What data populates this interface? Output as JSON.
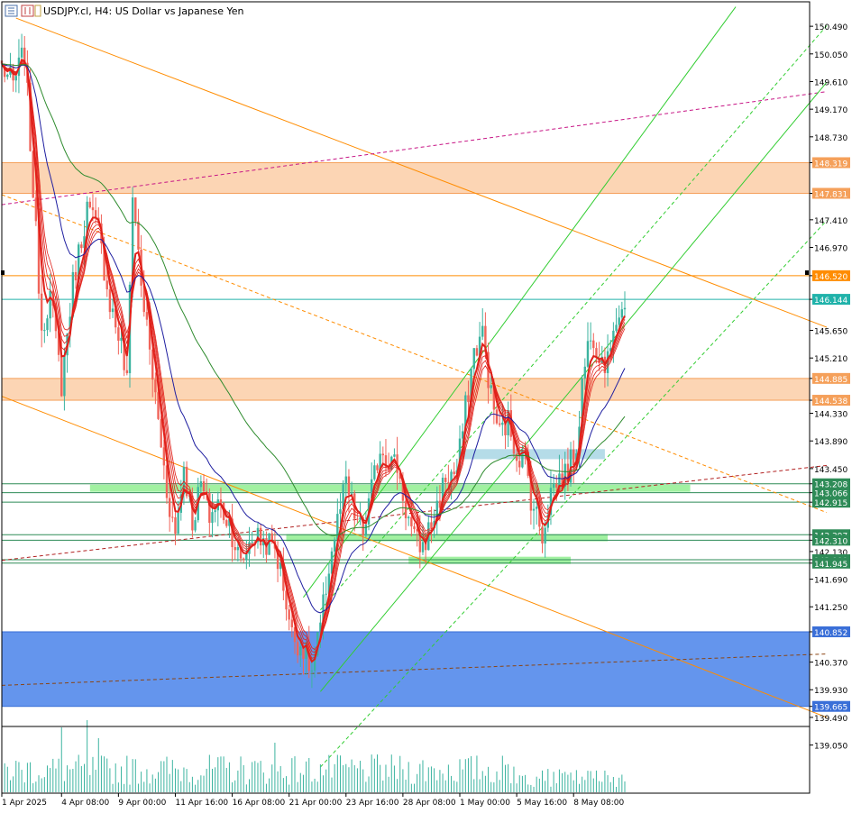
{
  "header": {
    "symbol_title": "USDJPY.cl, H4:  US Dollar vs Japanese Yen",
    "icon_names": [
      "chart-bars-icon",
      "chart-candles-icon",
      "chart-line-icon"
    ]
  },
  "chart_data": {
    "type": "candlestick",
    "ylim": [
      138.75,
      150.7
    ],
    "xlim": [
      0,
      220
    ],
    "y_ticks": [
      150.49,
      150.05,
      149.61,
      149.17,
      148.73,
      148.29,
      147.85,
      147.41,
      146.97,
      146.53,
      146.09,
      145.65,
      145.21,
      144.77,
      144.33,
      143.89,
      143.45,
      143.01,
      142.57,
      142.13,
      141.69,
      141.25,
      140.81,
      140.37,
      139.93,
      139.49,
      139.05
    ],
    "x_ticks": [
      {
        "i": 0,
        "label": "1 Apr 2025"
      },
      {
        "i": 21,
        "label": "4 Apr 08:00"
      },
      {
        "i": 41,
        "label": "9 Apr 00:00"
      },
      {
        "i": 61,
        "label": "11 Apr 16:00"
      },
      {
        "i": 81,
        "label": "16 Apr 08:00"
      },
      {
        "i": 101,
        "label": "21 Apr 00:00"
      },
      {
        "i": 121,
        "label": "23 Apr 16:00"
      },
      {
        "i": 141,
        "label": "28 Apr 08:00"
      },
      {
        "i": 161,
        "label": "1 May 00:00"
      },
      {
        "i": 181,
        "label": "5 May 16:00"
      },
      {
        "i": 201,
        "label": "8 May 08:00"
      }
    ],
    "price_anchors": [
      {
        "i": 0,
        "p": 149.85
      },
      {
        "i": 4,
        "p": 149.55
      },
      {
        "i": 8,
        "p": 150.1
      },
      {
        "i": 11,
        "p": 147.9
      },
      {
        "i": 14,
        "p": 145.7
      },
      {
        "i": 17,
        "p": 146.2
      },
      {
        "i": 21,
        "p": 144.8
      },
      {
        "i": 25,
        "p": 146.4
      },
      {
        "i": 30,
        "p": 147.6
      },
      {
        "i": 34,
        "p": 147.2
      },
      {
        "i": 38,
        "p": 146.1
      },
      {
        "i": 42,
        "p": 145.4
      },
      {
        "i": 44,
        "p": 144.8
      },
      {
        "i": 46,
        "p": 147.9
      },
      {
        "i": 49,
        "p": 146.4
      },
      {
        "i": 52,
        "p": 145.3
      },
      {
        "i": 55,
        "p": 144.2
      },
      {
        "i": 58,
        "p": 143.1
      },
      {
        "i": 61,
        "p": 142.4
      },
      {
        "i": 64,
        "p": 143.5
      },
      {
        "i": 67,
        "p": 142.6
      },
      {
        "i": 70,
        "p": 143.2
      },
      {
        "i": 73,
        "p": 142.7
      },
      {
        "i": 76,
        "p": 142.9
      },
      {
        "i": 80,
        "p": 142.6
      },
      {
        "i": 84,
        "p": 141.9
      },
      {
        "i": 88,
        "p": 142.4
      },
      {
        "i": 92,
        "p": 142.3
      },
      {
        "i": 96,
        "p": 142.2
      },
      {
        "i": 99,
        "p": 141.6
      },
      {
        "i": 102,
        "p": 140.8
      },
      {
        "i": 106,
        "p": 140.6
      },
      {
        "i": 109,
        "p": 140.2
      },
      {
        "i": 112,
        "p": 140.9
      },
      {
        "i": 115,
        "p": 141.9
      },
      {
        "i": 118,
        "p": 142.6
      },
      {
        "i": 121,
        "p": 143.2
      },
      {
        "i": 124,
        "p": 142.7
      },
      {
        "i": 127,
        "p": 142.4
      },
      {
        "i": 130,
        "p": 143.1
      },
      {
        "i": 133,
        "p": 143.8
      },
      {
        "i": 136,
        "p": 143.6
      },
      {
        "i": 139,
        "p": 143.5
      },
      {
        "i": 142,
        "p": 142.8
      },
      {
        "i": 145,
        "p": 142.3
      },
      {
        "i": 148,
        "p": 142.2
      },
      {
        "i": 152,
        "p": 142.7
      },
      {
        "i": 156,
        "p": 143.3
      },
      {
        "i": 160,
        "p": 143.4
      },
      {
        "i": 163,
        "p": 144.4
      },
      {
        "i": 166,
        "p": 145.3
      },
      {
        "i": 169,
        "p": 145.6
      },
      {
        "i": 172,
        "p": 144.6
      },
      {
        "i": 175,
        "p": 144.0
      },
      {
        "i": 178,
        "p": 144.2
      },
      {
        "i": 181,
        "p": 143.7
      },
      {
        "i": 184,
        "p": 143.6
      },
      {
        "i": 186,
        "p": 143.0
      },
      {
        "i": 188,
        "p": 142.7
      },
      {
        "i": 190,
        "p": 142.4
      },
      {
        "i": 193,
        "p": 143.1
      },
      {
        "i": 196,
        "p": 143.3
      },
      {
        "i": 199,
        "p": 143.4
      },
      {
        "i": 202,
        "p": 143.8
      },
      {
        "i": 204,
        "p": 144.8
      },
      {
        "i": 207,
        "p": 145.7
      },
      {
        "i": 210,
        "p": 145.3
      },
      {
        "i": 213,
        "p": 145.1
      },
      {
        "i": 215,
        "p": 145.8
      },
      {
        "i": 218,
        "p": 146.0
      }
    ],
    "zones": [
      {
        "from": 148.319,
        "to": 147.831,
        "fill": "#fcd5b4",
        "stroke": "#f5a05a",
        "start_i": 0
      },
      {
        "from": 144.885,
        "to": 144.538,
        "fill": "#fcd5b4",
        "stroke": "#f5a05a",
        "start_i": 0
      },
      {
        "from": 140.852,
        "to": 139.665,
        "fill": "#6495ed",
        "stroke": "#3a6fd8",
        "start_i": 0
      }
    ],
    "green_bands": [
      {
        "price": 143.137,
        "from_i": 31,
        "to_i": 242
      },
      {
        "price": 142.35,
        "from_i": 100,
        "to_i": 213
      },
      {
        "price": 141.99,
        "from_i": 143,
        "to_i": 200
      }
    ],
    "blue_box": {
      "from": 143.76,
      "to": 143.6,
      "from_i": 161,
      "to_i": 212
    },
    "hlines": [
      {
        "price": 146.52,
        "color": "#ff8c00"
      },
      {
        "price": 146.144,
        "color": "#20b2aa"
      },
      {
        "price": 143.208,
        "color": "#2e8b57"
      },
      {
        "price": 143.066,
        "color": "#2e8b57"
      },
      {
        "price": 142.915,
        "color": "#2e8b57"
      },
      {
        "price": 142.397,
        "color": "#2e8b57"
      },
      {
        "price": 142.31,
        "color": "#2e8b57"
      },
      {
        "price": 142.0,
        "color": "#2e8b57"
      },
      {
        "price": 141.945,
        "color": "#2e8b57"
      }
    ],
    "trendlines": [
      {
        "i1": 5,
        "p1": 150.62,
        "i2": 290,
        "p2": 145.7,
        "color": "#ff8c00",
        "dash": false
      },
      {
        "i1": 0,
        "p1": 147.81,
        "i2": 290,
        "p2": 142.75,
        "color": "#ff8c00",
        "dash": true
      },
      {
        "i1": 0,
        "p1": 144.6,
        "i2": 290,
        "p2": 139.49,
        "color": "#ff8c00",
        "dash": false
      },
      {
        "i1": 0,
        "p1": 141.99,
        "i2": 290,
        "p2": 143.5,
        "color": "#b22222",
        "dash": true
      },
      {
        "i1": 0,
        "p1": 147.65,
        "i2": 290,
        "p2": 149.45,
        "color": "#c71585",
        "dash": true
      },
      {
        "i1": 0,
        "p1": 140.0,
        "i2": 290,
        "p2": 140.5,
        "color": "#8b4513",
        "dash": true
      },
      {
        "i1": 106,
        "p1": 141.4,
        "i2": 258,
        "p2": 150.8,
        "color": "#32cd32",
        "dash": false
      },
      {
        "i1": 112,
        "p1": 139.9,
        "i2": 290,
        "p2": 149.6,
        "color": "#32cd32",
        "dash": false
      },
      {
        "i1": 112,
        "p1": 141.2,
        "i2": 290,
        "p2": 150.5,
        "color": "#32cd32",
        "dash": true
      },
      {
        "i1": 112,
        "p1": 138.7,
        "i2": 290,
        "p2": 147.4,
        "color": "#32cd32",
        "dash": true
      }
    ],
    "price_labels": [
      {
        "price": 150.49,
        "text": "150.490",
        "bg": null
      },
      {
        "price": 150.05,
        "text": "150.050",
        "bg": null
      },
      {
        "price": 149.61,
        "text": "149.610",
        "bg": null
      },
      {
        "price": 149.17,
        "text": "149.170",
        "bg": null
      },
      {
        "price": 148.73,
        "text": "148.730",
        "bg": null
      },
      {
        "price": 148.319,
        "text": "148.319",
        "bg": "#f5a05a"
      },
      {
        "price": 147.831,
        "text": "147.831",
        "bg": "#f5a05a"
      },
      {
        "price": 147.41,
        "text": "147.410",
        "bg": null
      },
      {
        "price": 146.97,
        "text": "146.970",
        "bg": null
      },
      {
        "price": 146.52,
        "text": "146.520",
        "bg": "#ff8c00"
      },
      {
        "price": 146.144,
        "text": "146.144",
        "bg": "#20b2aa"
      },
      {
        "price": 145.65,
        "text": "145.650",
        "bg": null
      },
      {
        "price": 145.21,
        "text": "145.210",
        "bg": null
      },
      {
        "price": 144.885,
        "text": "144.885",
        "bg": "#f5a05a"
      },
      {
        "price": 144.538,
        "text": "144.538",
        "bg": "#f5a05a"
      },
      {
        "price": 144.33,
        "text": "144.330",
        "bg": null
      },
      {
        "price": 143.89,
        "text": "143.890",
        "bg": null
      },
      {
        "price": 143.45,
        "text": "143.450",
        "bg": null
      },
      {
        "price": 143.208,
        "text": "143.208",
        "bg": "#2e8b57"
      },
      {
        "price": 143.066,
        "text": "143.066",
        "bg": "#2e8b57"
      },
      {
        "price": 142.915,
        "text": "142.915",
        "bg": "#2e8b57"
      },
      {
        "price": 142.397,
        "text": "142.397",
        "bg": "#2e8b57"
      },
      {
        "price": 142.31,
        "text": "142.310",
        "bg": "#2e8b57"
      },
      {
        "price": 142.13,
        "text": "142.130",
        "bg": null
      },
      {
        "price": 142.0,
        "text": "142.000",
        "bg": "#2e8b57"
      },
      {
        "price": 141.945,
        "text": "141.945",
        "bg": "#2e8b57"
      },
      {
        "price": 141.69,
        "text": "141.690",
        "bg": null
      },
      {
        "price": 141.25,
        "text": "141.250",
        "bg": null
      },
      {
        "price": 140.852,
        "text": "140.852",
        "bg": "#3a6fd8"
      },
      {
        "price": 140.37,
        "text": "140.370",
        "bg": null
      },
      {
        "price": 139.93,
        "text": "139.930",
        "bg": null
      },
      {
        "price": 139.665,
        "text": "139.665",
        "bg": "#3a6fd8"
      },
      {
        "price": 139.49,
        "text": "139.490",
        "bg": null
      },
      {
        "price": 139.05,
        "text": "139.050",
        "bg": null
      }
    ],
    "colors": {
      "bull": "#3cb4a0",
      "bear": "#f0645a",
      "ema_ribbon": "#e0201a",
      "ma_blue": "#1e1ea0",
      "ma_green": "#2e8b2e",
      "volume": "#3cb4a0",
      "grid": "#e6e6e6",
      "axis": "#000000"
    }
  }
}
